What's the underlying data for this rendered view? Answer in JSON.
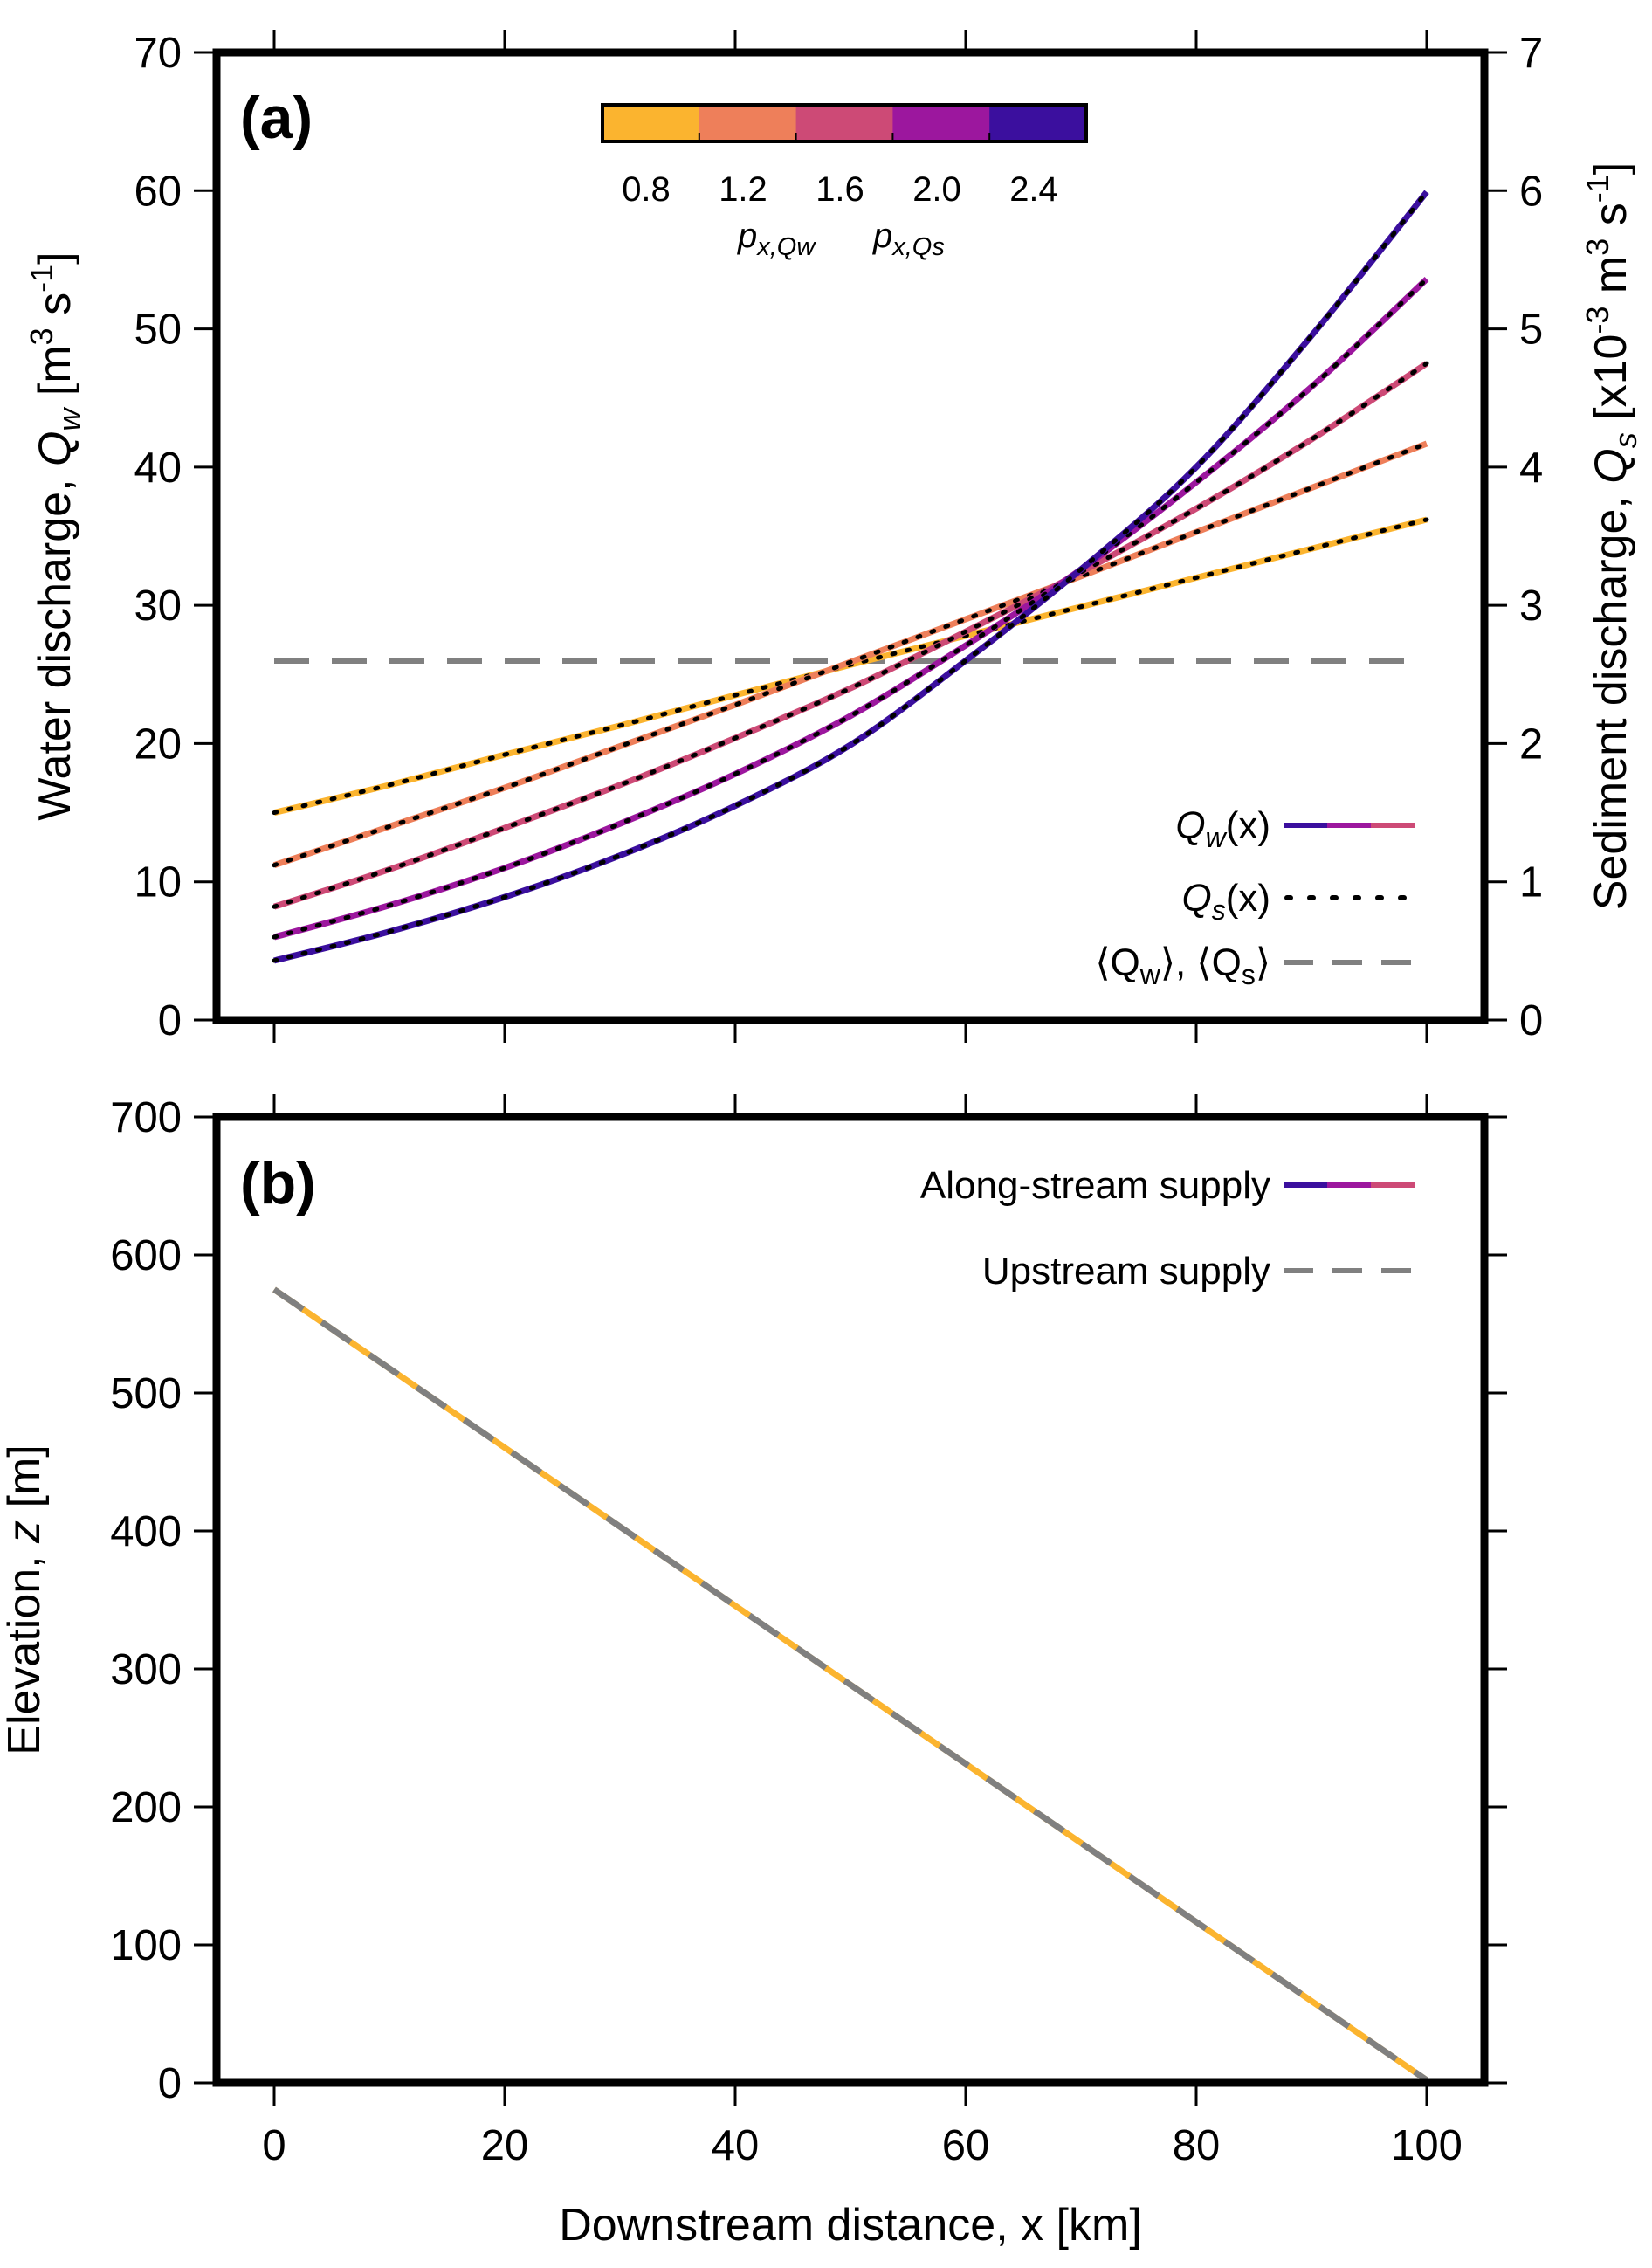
{
  "chart_data": [
    {
      "panel": "(a)",
      "type": "line",
      "xlabel": "Downstream distance, x [km]",
      "ylabel_left": {
        "pre": "Water discharge, ",
        "var": "Q",
        "sub": "w",
        "post": " [m",
        "sup1": "3",
        "mid": " s",
        "sup2": "-1",
        "end": "]"
      },
      "ylabel_right": {
        "pre": "Sediment discharge, ",
        "var": "Q",
        "sub": "s",
        "post": " [x10",
        "sup1": "-3",
        "mid": " m",
        "sup2": "3",
        "mid2": " s",
        "sup3": "-1",
        "end": "]"
      },
      "xlim": [
        -5,
        105
      ],
      "ylim_left": [
        0,
        70
      ],
      "ylim_right": [
        0,
        7
      ],
      "xticks": [
        0,
        20,
        40,
        60,
        80,
        100
      ],
      "yticks_left": [
        0,
        10,
        20,
        30,
        40,
        50,
        60,
        70
      ],
      "yticks_right": [
        0,
        1,
        2,
        3,
        4,
        5,
        6,
        7
      ],
      "series": [
        {
          "p": 0.8,
          "color": "#fbb42f",
          "x": [
            0,
            10,
            20,
            30,
            40,
            50,
            60,
            70,
            80,
            90,
            100
          ],
          "y": [
            15.0,
            17.0,
            19.2,
            21.3,
            23.5,
            25.7,
            27.8,
            29.9,
            32.0,
            34.1,
            36.2
          ]
        },
        {
          "p": 1.2,
          "color": "#ee7f5a",
          "x": [
            0,
            10,
            20,
            30,
            40,
            50,
            60,
            70,
            80,
            90,
            100
          ],
          "y": [
            11.2,
            14.0,
            16.8,
            19.8,
            22.8,
            25.9,
            29.0,
            32.1,
            35.3,
            38.5,
            41.7
          ]
        },
        {
          "p": 1.6,
          "color": "#cd4a76",
          "x": [
            0,
            10,
            20,
            30,
            40,
            50,
            60,
            70,
            80,
            90,
            100
          ],
          "y": [
            8.2,
            10.9,
            13.9,
            17.0,
            20.4,
            24.0,
            28.1,
            32.4,
            37.0,
            42.0,
            47.5
          ]
        },
        {
          "p": 2.0,
          "color": "#9c179e",
          "x": [
            0,
            10,
            20,
            30,
            40,
            50,
            60,
            70,
            80,
            90,
            100
          ],
          "y": [
            6.0,
            8.3,
            11.0,
            14.2,
            17.8,
            22.0,
            27.1,
            32.6,
            38.9,
            45.8,
            53.6
          ]
        },
        {
          "p": 2.4,
          "color": "#3b0f9e",
          "x": [
            0,
            10,
            20,
            30,
            40,
            50,
            60,
            70,
            80,
            90,
            100
          ],
          "y": [
            4.3,
            6.4,
            8.9,
            11.9,
            15.5,
            19.9,
            26.0,
            32.6,
            40.0,
            49.5,
            59.9
          ]
        }
      ],
      "mean_line": {
        "y": 26,
        "color": "#808080"
      },
      "colorbar": {
        "ticks": [
          "0.8",
          "1.2",
          "1.6",
          "2.0",
          "2.4"
        ],
        "colors": [
          "#fbb42f",
          "#ee7f5a",
          "#cd4a76",
          "#9c179e",
          "#3b0f9e"
        ],
        "label_qw": {
          "var": "p",
          "sub": "x,Qw"
        },
        "label_qs": {
          "var": "p",
          "sub": "x,Qs"
        }
      },
      "legend": [
        {
          "var": "Q",
          "sub": "w",
          "tail": "(x)",
          "style": "solid"
        },
        {
          "var": "Q",
          "sub": "s",
          "tail": "(x)",
          "style": "dotted"
        },
        {
          "text_a_pre": "⟨Q",
          "text_a_sub": "w",
          "text_a_post": "⟩, ⟨Q",
          "text_b_sub": "s",
          "text_b_post": "⟩",
          "style": "dashed"
        }
      ]
    },
    {
      "panel": "(b)",
      "type": "line",
      "xlabel": "Downstream distance, x [km]",
      "ylabel": {
        "pre": "Elevation, ",
        "var": "z",
        "post": " [m]"
      },
      "xlim": [
        -5,
        105
      ],
      "ylim": [
        0,
        700
      ],
      "xticks": [
        0,
        20,
        40,
        60,
        80,
        100
      ],
      "yticks": [
        0,
        100,
        200,
        300,
        400,
        500,
        600,
        700
      ],
      "series": [
        {
          "name": "Along-stream supply",
          "color": "#fbb42f",
          "x": [
            0,
            100
          ],
          "y": [
            575,
            2
          ]
        },
        {
          "name": "Upstream supply",
          "color": "#808080",
          "x": [
            0,
            100
          ],
          "y": [
            575,
            2
          ]
        }
      ],
      "legend": [
        "Along-stream supply",
        "Upstream supply"
      ]
    }
  ]
}
